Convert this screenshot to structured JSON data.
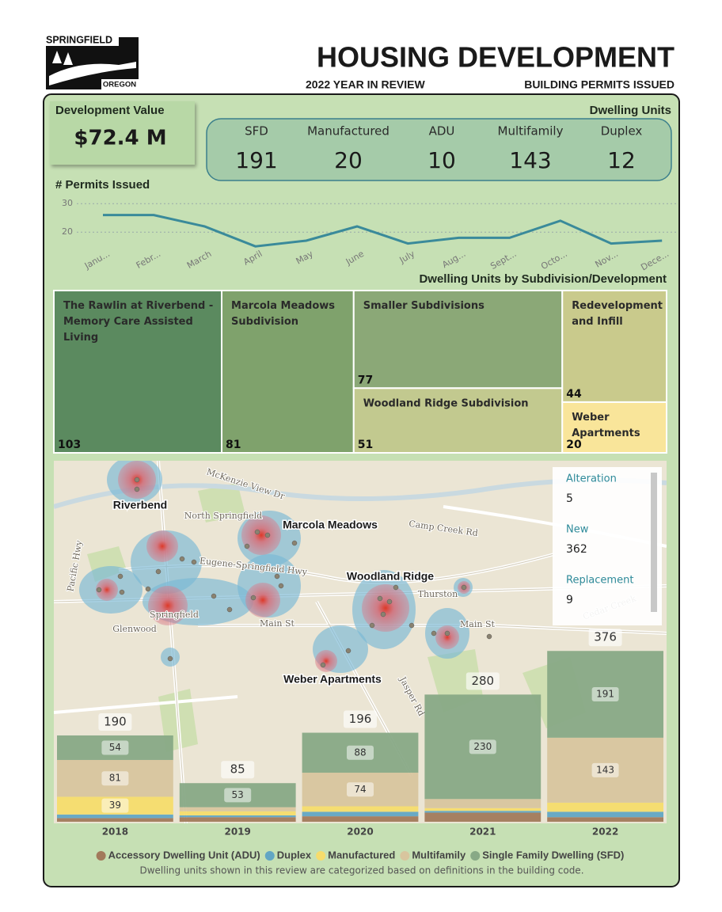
{
  "header": {
    "logo_name": "SPRINGFIELD",
    "logo_state": "OREGON",
    "title": "HOUSING DEVELOPMENT",
    "subtitle": "2022 YEAR IN REVIEW",
    "section": "BUILDING PERMITS ISSUED"
  },
  "development_value": {
    "label": "Development Value",
    "value": "$72.4 M"
  },
  "dwelling_units": {
    "title": "Dwelling Units",
    "items": [
      {
        "label": "SFD",
        "value": 191
      },
      {
        "label": "Manufactured",
        "value": 20
      },
      {
        "label": "ADU",
        "value": 10
      },
      {
        "label": "Multifamily",
        "value": 143
      },
      {
        "label": "Duplex",
        "value": 12
      }
    ]
  },
  "map": {
    "places": [
      "Riverbend",
      "Marcola Meadows",
      "Woodland Ridge",
      "Weber Apartments"
    ],
    "base_labels": [
      "McKenzie View Dr",
      "North Springfield",
      "Camp Creek Rd",
      "Eugene-Springfield Hwy",
      "Springfield",
      "Glenwood",
      "Main St",
      "Thurston",
      "Main St",
      "Jasper Rd",
      "Pacific Hwy",
      "Cedar Creek"
    ],
    "legend": [
      {
        "label": "Alteration",
        "value": 5
      },
      {
        "label": "New",
        "value": 362
      },
      {
        "label": "Replacement",
        "value": 9
      }
    ]
  },
  "chart_data": [
    {
      "type": "line",
      "title": "# Permits Issued",
      "categories": [
        "Janu...",
        "Febr...",
        "March",
        "April",
        "May",
        "June",
        "July",
        "Aug...",
        "Sept...",
        "Octo...",
        "Nov...",
        "Dece..."
      ],
      "values": [
        26,
        26,
        22,
        15,
        17,
        22,
        16,
        18,
        18,
        24,
        16,
        17
      ],
      "color": "#3a8a9a",
      "ylim": [
        12,
        32
      ],
      "yticks": [
        20,
        30
      ],
      "grid": true
    },
    {
      "type": "treemap",
      "title": "Dwelling Units by Subdivision/Development",
      "categories": [
        "The Rawlin at Riverbend - Memory Care Assisted Living",
        "Marcola Meadows Subdivision",
        "Smaller Subdivisions",
        "Woodland Ridge Subdivision",
        "Redevelopment and Infill",
        "Weber Apartments"
      ],
      "values": [
        103,
        81,
        77,
        51,
        44,
        20
      ],
      "colors": [
        "#5b8a5f",
        "#7fa26c",
        "#8ba877",
        "#c2c98f",
        "#c9ca8c",
        "#f9e59a"
      ]
    },
    {
      "type": "bar",
      "stacked": true,
      "categories": [
        "2018",
        "2019",
        "2020",
        "2021",
        "2022"
      ],
      "series": [
        {
          "name": "Accessory Dwelling Unit (ADU)",
          "color": "#a27a5b",
          "values": [
            8,
            10,
            12,
            20,
            10
          ]
        },
        {
          "name": "Duplex",
          "color": "#62a6c4",
          "values": [
            8,
            4,
            10,
            4,
            12
          ]
        },
        {
          "name": "Manufactured",
          "color": "#f6dc6c",
          "values": [
            39,
            9,
            12,
            6,
            20
          ]
        },
        {
          "name": "Multifamily",
          "color": "#d8c59e",
          "values": [
            81,
            9,
            74,
            20,
            143
          ]
        },
        {
          "name": "Single Family Dwelling (SFD)",
          "color": "#88a986",
          "values": [
            54,
            53,
            88,
            230,
            191
          ]
        }
      ],
      "totals": [
        190,
        85,
        196,
        280,
        376
      ],
      "ylim": [
        0,
        420
      ],
      "legend_position": "bottom",
      "note": "Dwelling units shown in this review are categorized based on definitions in the building code."
    }
  ]
}
